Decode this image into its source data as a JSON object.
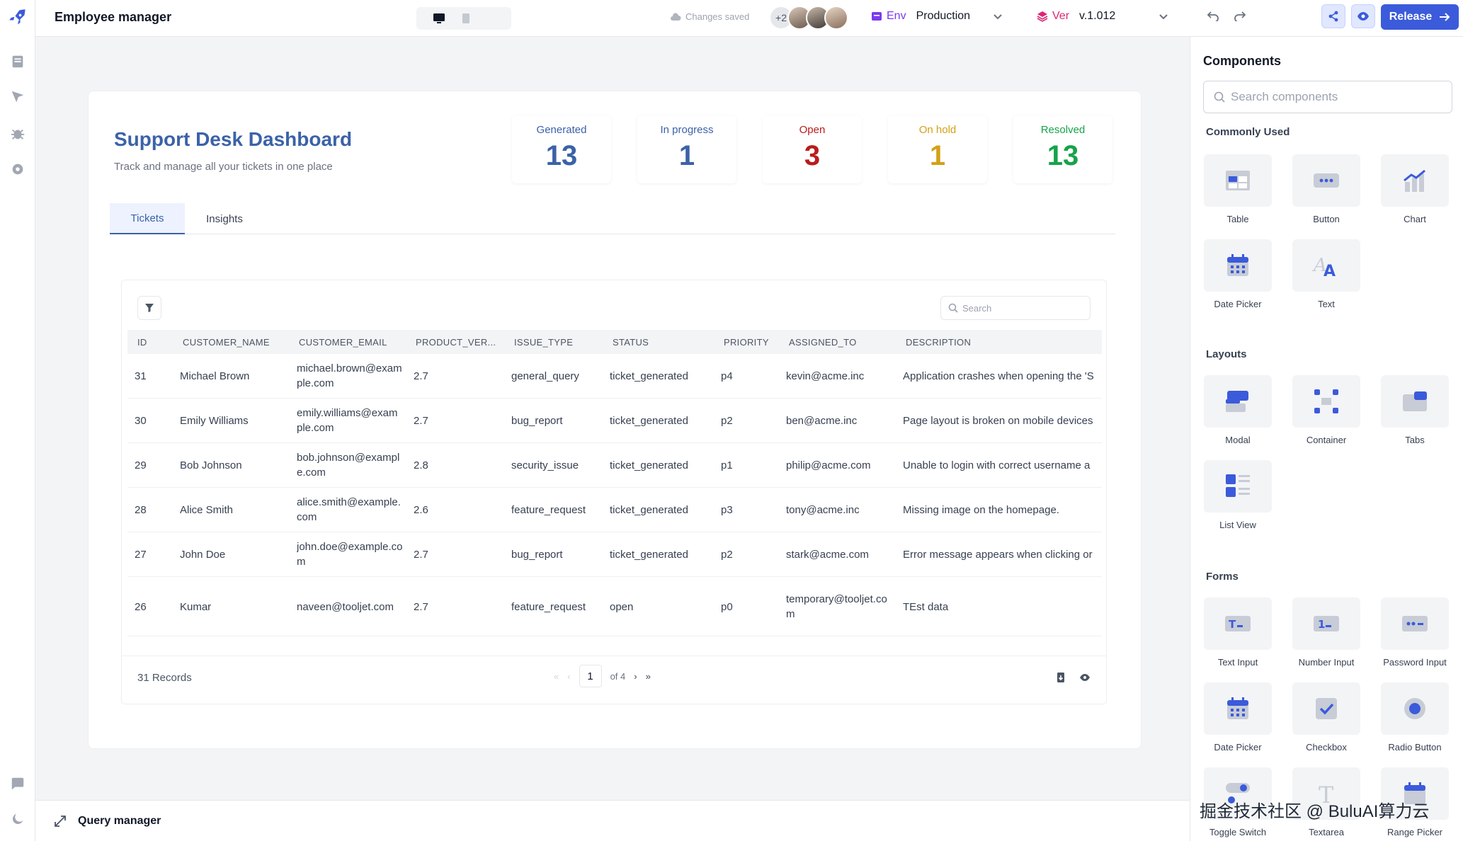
{
  "header": {
    "app_title": "Employee manager",
    "save_status": "Changes saved",
    "extra_collaborators": "+2",
    "env_label": "Env",
    "env_value": "Production",
    "ver_label": "Ver",
    "ver_value": "v.1.012",
    "release_label": "Release"
  },
  "dashboard": {
    "title": "Support Desk Dashboard",
    "subtitle": "Track and manage all your tickets in one place",
    "stats": [
      {
        "label": "Generated",
        "value": "13",
        "color": "#3b62a8"
      },
      {
        "label": "In progress",
        "value": "1",
        "color": "#3b62a8"
      },
      {
        "label": "Open",
        "value": "3",
        "color": "#b91c1c"
      },
      {
        "label": "On hold",
        "value": "1",
        "color": "#d4a017"
      },
      {
        "label": "Resolved",
        "value": "13",
        "color": "#16a34a"
      }
    ],
    "tabs": [
      {
        "label": "Tickets",
        "active": true
      },
      {
        "label": "Insights",
        "active": false
      }
    ]
  },
  "table": {
    "search_placeholder": "Search",
    "columns": [
      "ID",
      "CUSTOMER_NAME",
      "CUSTOMER_EMAIL",
      "PRODUCT_VER...",
      "ISSUE_TYPE",
      "STATUS",
      "PRIORITY",
      "ASSIGNED_TO",
      "DESCRIPTION"
    ],
    "rows": [
      [
        "31",
        "Michael Brown",
        "michael.brown@example.com",
        "2.7",
        "general_query",
        "ticket_generated",
        "p4",
        "kevin@acme.inc",
        "Application crashes when opening the 'S"
      ],
      [
        "30",
        "Emily Williams",
        "emily.williams@example.com",
        "2.7",
        "bug_report",
        "ticket_generated",
        "p2",
        "ben@acme.inc",
        "Page layout is broken on mobile devices"
      ],
      [
        "29",
        "Bob Johnson",
        "bob.johnson@example.com",
        "2.8",
        "security_issue",
        "ticket_generated",
        "p1",
        "philip@acme.com",
        "Unable to login with correct username a"
      ],
      [
        "28",
        "Alice Smith",
        "alice.smith@example.com",
        "2.6",
        "feature_request",
        "ticket_generated",
        "p3",
        "tony@acme.inc",
        "Missing image on the homepage."
      ],
      [
        "27",
        "John Doe",
        "john.doe@example.com",
        "2.7",
        "bug_report",
        "ticket_generated",
        "p2",
        "stark@acme.com",
        "Error message appears when clicking or"
      ],
      [
        "26",
        "Kumar",
        "naveen@tooljet.com",
        "2.7",
        "feature_request",
        "open",
        "p0",
        "temporary@tooljet.com",
        "TEst data"
      ]
    ],
    "records_label": "31 Records",
    "current_page": "1",
    "page_total": "of 4"
  },
  "query_manager": {
    "label": "Query manager"
  },
  "components_panel": {
    "title": "Components",
    "search_placeholder": "Search components",
    "sections": [
      {
        "title": "Commonly Used",
        "items": [
          {
            "label": "Table",
            "icon": "table-icon"
          },
          {
            "label": "Button",
            "icon": "button-icon"
          },
          {
            "label": "Chart",
            "icon": "chart-icon"
          },
          {
            "label": "Date Picker",
            "icon": "calendar-icon"
          },
          {
            "label": "Text",
            "icon": "text-icon"
          }
        ]
      },
      {
        "title": "Layouts",
        "items": [
          {
            "label": "Modal",
            "icon": "modal-icon"
          },
          {
            "label": "Container",
            "icon": "container-icon"
          },
          {
            "label": "Tabs",
            "icon": "tabs-icon"
          },
          {
            "label": "List View",
            "icon": "list-view-icon"
          }
        ]
      },
      {
        "title": "Forms",
        "items": [
          {
            "label": "Text Input",
            "icon": "text-input-icon"
          },
          {
            "label": "Number Input",
            "icon": "number-input-icon"
          },
          {
            "label": "Password Input",
            "icon": "password-input-icon"
          },
          {
            "label": "Date Picker",
            "icon": "calendar-icon"
          },
          {
            "label": "Checkbox",
            "icon": "checkbox-icon"
          },
          {
            "label": "Radio Button",
            "icon": "radio-icon"
          },
          {
            "label": "Toggle Switch",
            "icon": "toggle-icon"
          },
          {
            "label": "Textarea",
            "icon": "textarea-icon"
          },
          {
            "label": "Range Picker",
            "icon": "calendar-icon"
          }
        ]
      }
    ]
  },
  "watermark": "掘金技术社区 @ BuluAI算力云",
  "colors": {
    "accent": "#3b5bdb",
    "title_blue": "#3b62a8"
  }
}
